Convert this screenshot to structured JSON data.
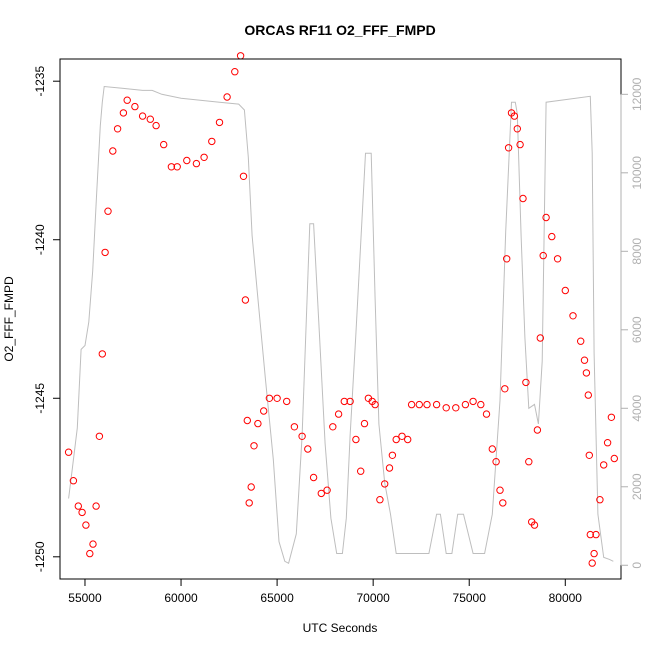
{
  "chart_data": {
    "type": "scatter",
    "title": "ORCAS RF11 O2_FFF_FMPD",
    "xlabel": "UTC Seconds",
    "ylabel": "O2_FFF_FMPD",
    "xlim": [
      53700,
      82900
    ],
    "ylim": [
      -1250.7,
      -1234.3
    ],
    "y2lim": [
      -350,
      12900
    ],
    "x_ticks": [
      55000,
      60000,
      65000,
      70000,
      75000,
      80000
    ],
    "y_ticks": [
      -1250,
      -1245,
      -1240,
      -1235
    ],
    "y2_ticks": [
      0,
      2000,
      4000,
      6000,
      8000,
      10000,
      12000
    ],
    "grid": false,
    "colors": {
      "points": "#ff0000",
      "altitude_line": "#bebebe",
      "axis": "#000000",
      "secondary_axis": "#b0b0b0"
    },
    "series": [
      {
        "marker": "open-circle",
        "axis": "left",
        "x": [
          54150,
          54400,
          54650,
          54850,
          55050,
          55250,
          55420,
          55580,
          55750,
          55900,
          56050,
          56200,
          56450,
          56700,
          57000,
          57200,
          57600,
          58000,
          58400,
          58700,
          59100,
          59500,
          59800,
          60300,
          60800,
          61200,
          61600,
          62000,
          62400,
          62800,
          63100,
          63250,
          63350,
          63450,
          63550,
          63650,
          63800,
          64000,
          64300,
          64600,
          65000,
          65500,
          65900,
          66300,
          66600,
          66900,
          67300,
          67600,
          67900,
          68200,
          68500,
          68800,
          69100,
          69350,
          69550,
          69750,
          69950,
          70100,
          70350,
          70600,
          70850,
          71000,
          71200,
          71500,
          71800,
          72000,
          72400,
          72800,
          73300,
          73800,
          74300,
          74800,
          75200,
          75600,
          75900,
          76200,
          76400,
          76600,
          76750,
          76850,
          76950,
          77050,
          77200,
          77350,
          77500,
          77650,
          77800,
          77950,
          78100,
          78250,
          78400,
          78550,
          78700,
          78850,
          79000,
          79300,
          79600,
          80000,
          80400,
          80800,
          81000,
          81100,
          81200,
          81250,
          81300,
          81400,
          81500,
          81600,
          81800,
          82000,
          82200,
          82400,
          82550
        ],
        "y": [
          -1246.7,
          -1247.6,
          -1248.4,
          -1248.6,
          -1249.0,
          -1249.9,
          -1249.6,
          -1248.4,
          -1246.2,
          -1243.6,
          -1240.4,
          -1239.1,
          -1237.2,
          -1236.5,
          -1236.0,
          -1235.6,
          -1235.8,
          -1236.1,
          -1236.2,
          -1236.4,
          -1237.0,
          -1237.7,
          -1237.7,
          -1237.5,
          -1237.6,
          -1237.4,
          -1236.9,
          -1236.3,
          -1235.5,
          -1234.7,
          -1234.2,
          -1238.0,
          -1241.9,
          -1245.7,
          -1248.3,
          -1247.8,
          -1246.5,
          -1245.8,
          -1245.4,
          -1245.0,
          -1245.0,
          -1245.1,
          -1245.9,
          -1246.2,
          -1246.6,
          -1247.5,
          -1248.0,
          -1247.9,
          -1245.9,
          -1245.5,
          -1245.1,
          -1245.1,
          -1246.3,
          -1247.3,
          -1245.8,
          -1245.0,
          -1245.1,
          -1245.2,
          -1248.2,
          -1247.7,
          -1247.2,
          -1246.8,
          -1246.3,
          -1246.2,
          -1246.3,
          -1245.2,
          -1245.2,
          -1245.2,
          -1245.2,
          -1245.3,
          -1245.3,
          -1245.2,
          -1245.1,
          -1245.2,
          -1245.5,
          -1246.6,
          -1247.0,
          -1247.9,
          -1248.3,
          -1244.7,
          -1240.6,
          -1237.1,
          -1236.0,
          -1236.1,
          -1236.5,
          -1237.0,
          -1238.7,
          -1244.5,
          -1247.0,
          -1248.9,
          -1249.0,
          -1246.0,
          -1243.1,
          -1240.5,
          -1239.3,
          -1239.9,
          -1240.6,
          -1241.6,
          -1242.4,
          -1243.2,
          -1243.8,
          -1244.2,
          -1244.9,
          -1246.8,
          -1249.3,
          -1250.2,
          -1249.9,
          -1249.3,
          -1248.2,
          -1247.1,
          -1246.4,
          -1245.6,
          -1246.9
        ]
      },
      {
        "style": "line",
        "axis": "right",
        "x": [
          54150,
          54350,
          54600,
          54800,
          55000,
          55200,
          55400,
          55600,
          55800,
          55900,
          56000,
          57000,
          58000,
          58500,
          59000,
          60000,
          61000,
          62000,
          63000,
          63300,
          63500,
          63700,
          64000,
          64400,
          64800,
          65100,
          65400,
          65600,
          66000,
          66300,
          66700,
          66900,
          67200,
          67500,
          67800,
          68100,
          68400,
          68600,
          68800,
          69100,
          69600,
          69900,
          70100,
          70300,
          70600,
          70900,
          71200,
          71600,
          72300,
          72900,
          73300,
          73500,
          73800,
          74100,
          74400,
          74700,
          75200,
          75500,
          75800,
          76200,
          76600,
          76900,
          77200,
          77400,
          77500,
          77700,
          77900,
          78100,
          78400,
          78600,
          78800,
          79000,
          81300,
          81400,
          81500,
          81700,
          82000,
          82300,
          82500
        ],
        "y": [
          1700,
          2500,
          3500,
          5500,
          5600,
          6200,
          7500,
          9400,
          11200,
          11800,
          12200,
          12150,
          12100,
          12100,
          12000,
          11900,
          11850,
          11800,
          11750,
          11600,
          10400,
          8400,
          6800,
          4700,
          2700,
          600,
          100,
          50,
          800,
          3300,
          8700,
          8700,
          5900,
          3100,
          1200,
          300,
          300,
          1200,
          3300,
          5900,
          10500,
          10500,
          6800,
          3600,
          2100,
          1300,
          300,
          300,
          300,
          300,
          1300,
          1300,
          300,
          300,
          1300,
          1300,
          300,
          300,
          300,
          1300,
          4200,
          8500,
          11800,
          11800,
          11500,
          8400,
          5800,
          4000,
          4100,
          3600,
          5200,
          11800,
          11950,
          10500,
          5400,
          1300,
          200,
          150,
          100
        ]
      }
    ]
  }
}
